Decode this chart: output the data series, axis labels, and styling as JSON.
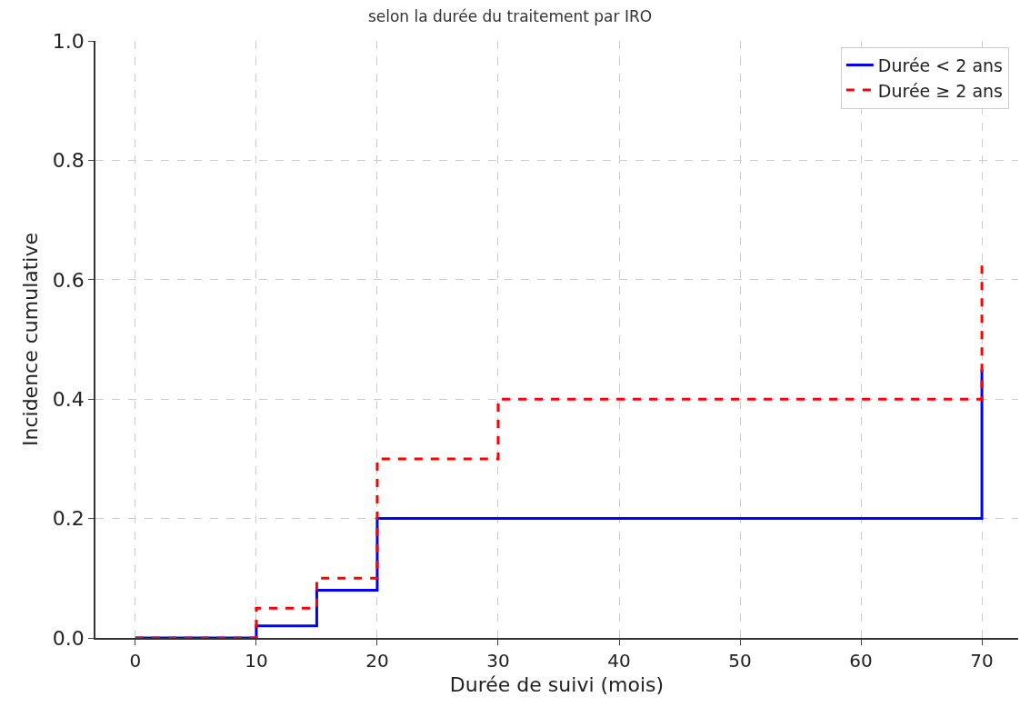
{
  "chart_data": {
    "type": "step",
    "title": "selon la durée du traitement par IRO",
    "xlabel": "Durée de suivi (mois)",
    "ylabel": "Incidence cumulative",
    "series": [
      {
        "name": "Durée < 2 ans",
        "color": "#0000ff",
        "line_style": "solid",
        "x": [
          0,
          10,
          15,
          20,
          70
        ],
        "values": [
          0,
          0.02,
          0.08,
          0.2,
          0.45
        ]
      },
      {
        "name": "Durée ≥ 2 ans",
        "color": "#ff0000",
        "line_style": "dashed",
        "x": [
          0,
          10,
          15,
          20,
          30,
          70
        ],
        "values": [
          0,
          0.05,
          0.1,
          0.3,
          0.4,
          0.63
        ]
      }
    ],
    "xlim": [
      -3.3,
      73
    ],
    "xticks": [
      0,
      10,
      20,
      30,
      40,
      50,
      60,
      70
    ],
    "ylim": [
      0,
      1
    ],
    "yticks": [
      {
        "value": 0,
        "label": "0.0"
      },
      {
        "value": 0.2,
        "label": "0.2"
      },
      {
        "value": 0.4,
        "label": "0.4"
      },
      {
        "value": 0.6,
        "label": "0.6"
      },
      {
        "value": 0.8,
        "label": "0.8"
      },
      {
        "value": 1,
        "label": "1.0"
      }
    ],
    "grid": true,
    "legend": "top right",
    "marker": "none"
  }
}
